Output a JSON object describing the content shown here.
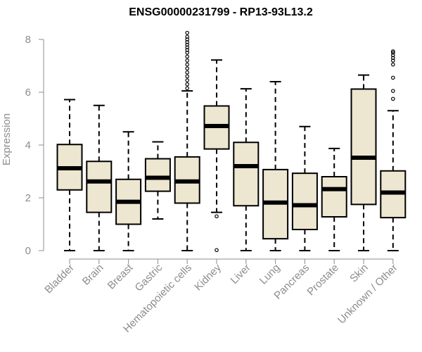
{
  "chart_data": {
    "type": "boxplot",
    "title": "ENSG00000231799 - RP13-93L13.2",
    "xlabel": "",
    "ylabel": "Expression",
    "ylim": [
      0,
      8.2
    ],
    "yticks": [
      0,
      2,
      4,
      6,
      8
    ],
    "grid": false,
    "colors": {
      "box_fill": "#ede6d0",
      "stroke": "#000000",
      "axis": "#8c8c8c"
    },
    "categories": [
      "Bladder",
      "Brain",
      "Breast",
      "Gastric",
      "Hematopoietic cells",
      "Kidney",
      "Liver",
      "Lung",
      "Pancreas",
      "Prostate",
      "Skin",
      "Unknown / Other"
    ],
    "boxes": [
      {
        "category": "Bladder",
        "min": 0,
        "q1": 2.3,
        "median": 3.12,
        "q3": 4.02,
        "max": 5.72,
        "outliers": []
      },
      {
        "category": "Brain",
        "min": 0,
        "q1": 1.45,
        "median": 2.62,
        "q3": 3.38,
        "max": 5.5,
        "outliers": []
      },
      {
        "category": "Breast",
        "min": 0,
        "q1": 1.0,
        "median": 1.85,
        "q3": 2.7,
        "max": 4.5,
        "outliers": []
      },
      {
        "category": "Gastric",
        "min": 1.2,
        "q1": 2.25,
        "median": 2.76,
        "q3": 3.48,
        "max": 4.12,
        "outliers": []
      },
      {
        "category": "Hematopoietic cells",
        "min": 0,
        "q1": 1.8,
        "median": 2.62,
        "q3": 3.55,
        "max": 6.05,
        "outliers": [
          6.15,
          6.3,
          6.45,
          6.6,
          6.75,
          6.9,
          7.05,
          7.2,
          7.35,
          7.5,
          7.6,
          7.7,
          7.8,
          7.9,
          8.0,
          8.1,
          8.25
        ]
      },
      {
        "category": "Kidney",
        "min": 1.45,
        "q1": 3.85,
        "median": 4.72,
        "q3": 5.48,
        "max": 7.22,
        "outliers": [
          1.3,
          0.02
        ]
      },
      {
        "category": "Liver",
        "min": 0,
        "q1": 1.7,
        "median": 3.2,
        "q3": 4.1,
        "max": 6.13,
        "outliers": []
      },
      {
        "category": "Lung",
        "min": 0,
        "q1": 0.45,
        "median": 1.82,
        "q3": 3.07,
        "max": 6.4,
        "outliers": []
      },
      {
        "category": "Pancreas",
        "min": 0,
        "q1": 0.8,
        "median": 1.72,
        "q3": 2.93,
        "max": 4.7,
        "outliers": []
      },
      {
        "category": "Prostate",
        "min": 0,
        "q1": 1.28,
        "median": 2.33,
        "q3": 2.8,
        "max": 3.87,
        "outliers": []
      },
      {
        "category": "Skin",
        "min": 0,
        "q1": 1.75,
        "median": 3.52,
        "q3": 6.12,
        "max": 6.65,
        "outliers": []
      },
      {
        "category": "Unknown / Other",
        "min": 0,
        "q1": 1.25,
        "median": 2.2,
        "q3": 3.02,
        "max": 5.3,
        "outliers": [
          5.75,
          6.05,
          6.55,
          7.05,
          7.2,
          7.3,
          7.4,
          7.5,
          7.55
        ]
      }
    ]
  }
}
